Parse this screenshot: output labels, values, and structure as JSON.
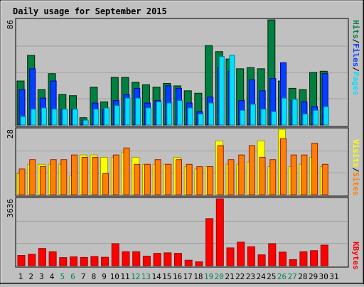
{
  "title": "Daily usage for September 2015",
  "colors": {
    "hits": "#008040",
    "files": "#0040ff",
    "pages": "#00e0ff",
    "visits": "#ffff00",
    "sites": "#ff8000",
    "kbytes": "#ff0000",
    "weekend_day_label": "#00805c",
    "weekday_label": "#000000",
    "title_text": "#0000ff",
    "panel_bg": "#c0c0c0",
    "grid": "#a0a0a0"
  },
  "panels": {
    "top": {
      "max_label": "86",
      "legend": [
        {
          "text": "Hits",
          "color": "#008040"
        },
        {
          "text": "/",
          "color": "#000000"
        },
        {
          "text": "Files",
          "color": "#0040ff"
        },
        {
          "text": "/",
          "color": "#000000"
        },
        {
          "text": "Pages",
          "color": "#00e0ff"
        }
      ]
    },
    "middle": {
      "max_label": "28",
      "legend": [
        {
          "text": "Visits",
          "color": "#ffff00"
        },
        {
          "text": "/",
          "color": "#000000"
        },
        {
          "text": "Sites",
          "color": "#ff8000"
        }
      ]
    },
    "bottom": {
      "max_label": "3636",
      "legend": [
        {
          "text": "KBytes",
          "color": "#ff0000"
        }
      ]
    }
  },
  "chart_data": {
    "type": "bar",
    "title": "Daily usage for September 2015",
    "categories": [
      "1",
      "2",
      "3",
      "4",
      "5",
      "6",
      "7",
      "8",
      "9",
      "10",
      "11",
      "12",
      "13",
      "14",
      "15",
      "16",
      "17",
      "18",
      "19",
      "20",
      "21",
      "22",
      "23",
      "24",
      "25",
      "26",
      "27",
      "28",
      "29",
      "30",
      "31"
    ],
    "weekend_days": [
      "5",
      "6",
      "12",
      "13",
      "19",
      "20",
      "26",
      "27"
    ],
    "charts": [
      {
        "panel": "top",
        "ymax": 86,
        "series": [
          {
            "name": "Hits",
            "values": [
              36,
              57,
              29,
              42,
              25,
              24,
              6,
              31,
              19,
              39,
              39,
              35,
              33,
              31,
              34,
              32,
              28,
              26,
              65,
              60,
              54,
              46,
              47,
              46,
              86,
              36,
              30,
              29,
              43,
              44,
              0
            ]
          },
          {
            "name": "Files",
            "values": [
              29,
              46,
              22,
              36,
              13,
              13,
              4,
              18,
              13,
              20,
              25,
              30,
              18,
              20,
              32,
              30,
              18,
              11,
              23,
              47,
              44,
              20,
              37,
              28,
              38,
              51,
              20,
              19,
              15,
              42,
              0
            ]
          },
          {
            "name": "Pages",
            "values": [
              7,
              13,
              14,
              13,
              13,
              13,
              4,
              13,
              14,
              16,
              22,
              22,
              14,
              19,
              18,
              20,
              14,
              9,
              18,
              56,
              57,
              12,
              17,
              13,
              11,
              22,
              21,
              9,
              12,
              15,
              0
            ]
          }
        ]
      },
      {
        "panel": "middle",
        "ymax": 28,
        "series": [
          {
            "name": "Visits",
            "values": [
              9,
              13,
              13,
              13,
              13,
              8,
              17,
              17,
              16,
              16,
              18,
              16,
              13,
              13,
              13,
              16,
              12,
              11,
              12,
              23,
              13,
              13,
              14,
              23,
              12,
              28,
              12,
              13,
              16,
              12,
              0
            ]
          },
          {
            "name": "Sites",
            "values": [
              11,
              15,
              12,
              15,
              15,
              17,
              16,
              16,
              9,
              17,
              20,
              13,
              13,
              15,
              13,
              15,
              13,
              12,
              12,
              21,
              15,
              17,
              21,
              16,
              15,
              24,
              17,
              17,
              22,
              13,
              0
            ]
          }
        ]
      },
      {
        "panel": "bottom",
        "ymax": 3636,
        "series": [
          {
            "name": "KBytes",
            "values": [
              560,
              620,
              940,
              760,
              440,
              480,
              450,
              500,
              460,
              1200,
              760,
              760,
              520,
              670,
              700,
              670,
              300,
              210,
              2560,
              3636,
              970,
              1280,
              1030,
              590,
              1200,
              740,
              330,
              760,
              820,
              1120,
              0
            ]
          }
        ]
      }
    ]
  }
}
